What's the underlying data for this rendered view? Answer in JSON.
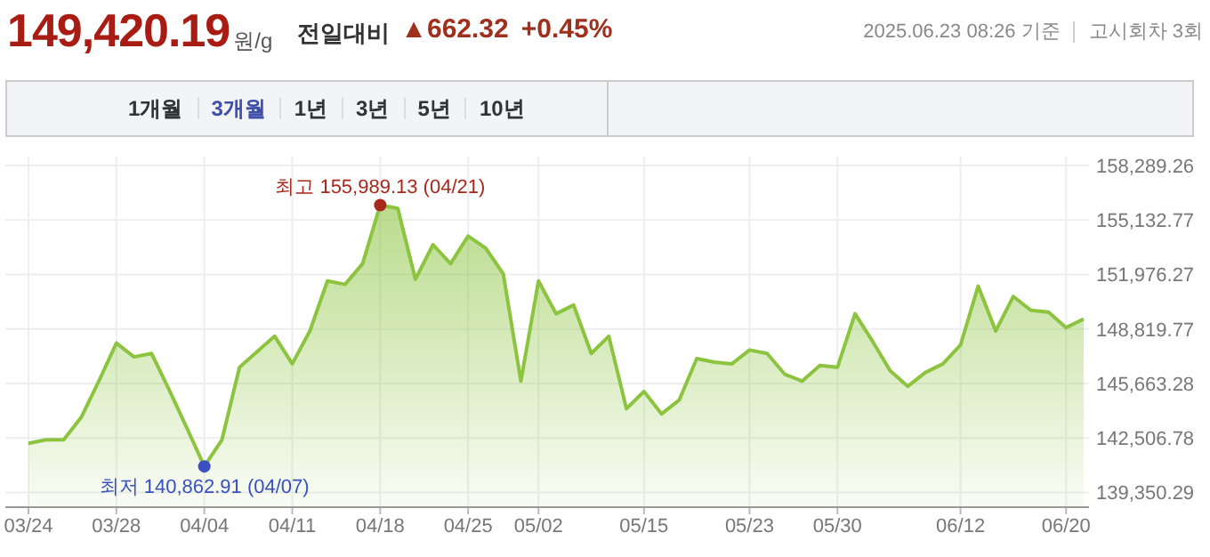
{
  "chart_data": {
    "type": "area",
    "title": "149,420.19",
    "annotations": [
      "원/g",
      "전일대비",
      "▲662.32",
      "+0.45%",
      "2025.06.23 08:26 기준",
      "고시회차 3회",
      "1개월",
      "3개월",
      "1년",
      "3년",
      "5년",
      "10년",
      {
        "text": "최고 155,989.13 (04/21)",
        "y": 155989.13
      },
      {
        "text": "최저 140,862.91 (04/07)",
        "y": 140862.91
      }
    ],
    "categories": [
      "03/24",
      null,
      null,
      null,
      null,
      "03/28",
      null,
      null,
      null,
      null,
      "04/04",
      null,
      null,
      null,
      null,
      "04/11",
      null,
      null,
      null,
      null,
      "04/18",
      null,
      null,
      null,
      null,
      "04/25",
      null,
      null,
      null,
      "05/02",
      null,
      null,
      null,
      null,
      null,
      "05/15",
      null,
      null,
      null,
      null,
      null,
      "05/23",
      null,
      null,
      null,
      null,
      "05/30",
      null,
      null,
      null,
      null,
      null,
      null,
      "06/12",
      null,
      null,
      null,
      null,
      null,
      "06/20",
      null
    ],
    "series": [
      {
        "color": "#8cc43f",
        "values": [
          142200,
          142400,
          142400,
          143700,
          145800,
          148000,
          147200,
          147400,
          145300,
          143100,
          140862.91,
          142400,
          146600,
          147500,
          148400,
          146800,
          148700,
          151600,
          151400,
          152600,
          155989.13,
          155800,
          151700,
          153700,
          152600,
          154200,
          153500,
          152000,
          145800,
          151600,
          149700,
          150200,
          147400,
          148400,
          144200,
          145200,
          143900,
          144700,
          147100,
          146900,
          146800,
          147600,
          147400,
          146200,
          145800,
          146700,
          146600,
          149700,
          148100,
          146400,
          145500,
          146300,
          146800,
          147900,
          151300,
          148700,
          150700,
          149900,
          149800,
          148900,
          149400
        ]
      }
    ],
    "ylim": [
      138500,
      158800
    ],
    "yticks": [
      {
        "value": 158289.26,
        "label": "158,289.26"
      },
      {
        "value": 155132.77,
        "label": "155,132.77"
      },
      {
        "value": 151976.27,
        "label": "151,976.27"
      },
      {
        "value": 148819.77,
        "label": "148,819.77"
      },
      {
        "value": 145663.28,
        "label": "145,663.28"
      },
      {
        "value": 142506.78,
        "label": "142,506.78"
      },
      {
        "value": 139350.29,
        "label": "139,350.29"
      }
    ],
    "grid": true,
    "marker": "none"
  }
}
